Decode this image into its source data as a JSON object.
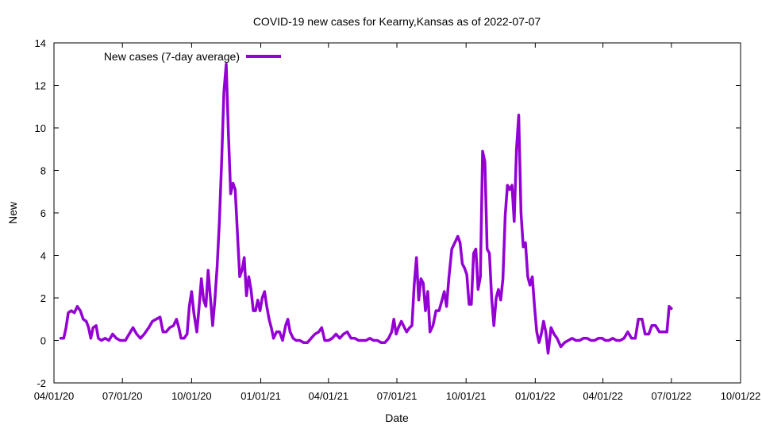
{
  "chart_data": {
    "type": "line",
    "title": "COVID-19 new cases for Kearny,Kansas as of 2022-07-07",
    "xlabel": "Date",
    "ylabel": "New",
    "xlim": [
      "2020-04-01",
      "2022-10-01"
    ],
    "ylim": [
      -2,
      14
    ],
    "x_ticks": [
      "04/01/20",
      "07/01/20",
      "10/01/20",
      "01/01/21",
      "04/01/21",
      "07/01/21",
      "10/01/21",
      "01/01/22",
      "04/01/22",
      "07/01/22",
      "10/01/22"
    ],
    "y_ticks": [
      -2,
      0,
      2,
      4,
      6,
      8,
      10,
      12,
      14
    ],
    "grid": false,
    "legend_position": "top-left",
    "series": [
      {
        "name": "New cases (7-day average)",
        "color": "#9400D3",
        "points": [
          [
            "2020-04-10",
            0.1
          ],
          [
            "2020-04-14",
            0.1
          ],
          [
            "2020-04-17",
            0.6
          ],
          [
            "2020-04-20",
            1.3
          ],
          [
            "2020-04-24",
            1.4
          ],
          [
            "2020-04-28",
            1.3
          ],
          [
            "2020-05-02",
            1.6
          ],
          [
            "2020-05-06",
            1.4
          ],
          [
            "2020-05-10",
            1.0
          ],
          [
            "2020-05-14",
            0.9
          ],
          [
            "2020-05-17",
            0.6
          ],
          [
            "2020-05-20",
            0.1
          ],
          [
            "2020-05-23",
            0.6
          ],
          [
            "2020-05-27",
            0.7
          ],
          [
            "2020-05-30",
            0.1
          ],
          [
            "2020-06-03",
            0.0
          ],
          [
            "2020-06-08",
            0.1
          ],
          [
            "2020-06-13",
            0.0
          ],
          [
            "2020-06-18",
            0.3
          ],
          [
            "2020-06-23",
            0.1
          ],
          [
            "2020-06-28",
            0.0
          ],
          [
            "2020-07-05",
            0.0
          ],
          [
            "2020-07-10",
            0.3
          ],
          [
            "2020-07-15",
            0.6
          ],
          [
            "2020-07-20",
            0.3
          ],
          [
            "2020-07-25",
            0.1
          ],
          [
            "2020-07-30",
            0.3
          ],
          [
            "2020-08-05",
            0.6
          ],
          [
            "2020-08-10",
            0.9
          ],
          [
            "2020-08-15",
            1.0
          ],
          [
            "2020-08-20",
            1.1
          ],
          [
            "2020-08-24",
            0.4
          ],
          [
            "2020-08-28",
            0.4
          ],
          [
            "2020-09-02",
            0.6
          ],
          [
            "2020-09-07",
            0.7
          ],
          [
            "2020-09-11",
            1.0
          ],
          [
            "2020-09-14",
            0.6
          ],
          [
            "2020-09-17",
            0.1
          ],
          [
            "2020-09-21",
            0.1
          ],
          [
            "2020-09-25",
            0.3
          ],
          [
            "2020-09-28",
            1.6
          ],
          [
            "2020-10-01",
            2.3
          ],
          [
            "2020-10-04",
            1.3
          ],
          [
            "2020-10-08",
            0.4
          ],
          [
            "2020-10-11",
            1.6
          ],
          [
            "2020-10-14",
            2.9
          ],
          [
            "2020-10-17",
            1.9
          ],
          [
            "2020-10-20",
            1.6
          ],
          [
            "2020-10-23",
            3.3
          ],
          [
            "2020-10-26",
            2.0
          ],
          [
            "2020-10-29",
            0.7
          ],
          [
            "2020-11-01",
            1.9
          ],
          [
            "2020-11-04",
            3.5
          ],
          [
            "2020-11-07",
            5.6
          ],
          [
            "2020-11-10",
            8.5
          ],
          [
            "2020-11-13",
            11.7
          ],
          [
            "2020-11-16",
            13.0
          ],
          [
            "2020-11-19",
            9.7
          ],
          [
            "2020-11-22",
            6.9
          ],
          [
            "2020-11-25",
            7.4
          ],
          [
            "2020-11-28",
            7.1
          ],
          [
            "2020-12-01",
            5.0
          ],
          [
            "2020-12-04",
            3.0
          ],
          [
            "2020-12-07",
            3.3
          ],
          [
            "2020-12-10",
            3.9
          ],
          [
            "2020-12-13",
            2.1
          ],
          [
            "2020-12-16",
            3.0
          ],
          [
            "2020-12-19",
            2.4
          ],
          [
            "2020-12-22",
            1.4
          ],
          [
            "2020-12-25",
            1.4
          ],
          [
            "2020-12-28",
            1.9
          ],
          [
            "2020-12-31",
            1.4
          ],
          [
            "2021-01-03",
            2.0
          ],
          [
            "2021-01-06",
            2.3
          ],
          [
            "2021-01-09",
            1.6
          ],
          [
            "2021-01-12",
            1.0
          ],
          [
            "2021-01-15",
            0.6
          ],
          [
            "2021-01-18",
            0.1
          ],
          [
            "2021-01-22",
            0.4
          ],
          [
            "2021-01-26",
            0.4
          ],
          [
            "2021-01-30",
            0.0
          ],
          [
            "2021-02-03",
            0.7
          ],
          [
            "2021-02-06",
            1.0
          ],
          [
            "2021-02-09",
            0.4
          ],
          [
            "2021-02-13",
            0.1
          ],
          [
            "2021-02-17",
            0.0
          ],
          [
            "2021-02-22",
            0.0
          ],
          [
            "2021-02-27",
            -0.1
          ],
          [
            "2021-03-04",
            -0.1
          ],
          [
            "2021-03-09",
            0.1
          ],
          [
            "2021-03-14",
            0.3
          ],
          [
            "2021-03-19",
            0.4
          ],
          [
            "2021-03-23",
            0.6
          ],
          [
            "2021-03-27",
            0.0
          ],
          [
            "2021-04-01",
            0.0
          ],
          [
            "2021-04-06",
            0.1
          ],
          [
            "2021-04-11",
            0.3
          ],
          [
            "2021-04-16",
            0.1
          ],
          [
            "2021-04-21",
            0.3
          ],
          [
            "2021-04-26",
            0.4
          ],
          [
            "2021-05-01",
            0.1
          ],
          [
            "2021-05-06",
            0.1
          ],
          [
            "2021-05-11",
            0.0
          ],
          [
            "2021-05-16",
            0.0
          ],
          [
            "2021-05-21",
            0.0
          ],
          [
            "2021-05-26",
            0.1
          ],
          [
            "2021-05-31",
            0.0
          ],
          [
            "2021-06-05",
            0.0
          ],
          [
            "2021-06-10",
            -0.1
          ],
          [
            "2021-06-15",
            -0.1
          ],
          [
            "2021-06-20",
            0.1
          ],
          [
            "2021-06-24",
            0.4
          ],
          [
            "2021-06-27",
            1.0
          ],
          [
            "2021-06-30",
            0.3
          ],
          [
            "2021-07-03",
            0.6
          ],
          [
            "2021-07-07",
            0.9
          ],
          [
            "2021-07-11",
            0.6
          ],
          [
            "2021-07-14",
            0.4
          ],
          [
            "2021-07-18",
            0.6
          ],
          [
            "2021-07-21",
            0.7
          ],
          [
            "2021-07-24",
            2.6
          ],
          [
            "2021-07-27",
            3.9
          ],
          [
            "2021-07-30",
            1.9
          ],
          [
            "2021-08-02",
            2.9
          ],
          [
            "2021-08-05",
            2.7
          ],
          [
            "2021-08-08",
            1.4
          ],
          [
            "2021-08-11",
            2.3
          ],
          [
            "2021-08-14",
            0.4
          ],
          [
            "2021-08-18",
            0.7
          ],
          [
            "2021-08-22",
            1.4
          ],
          [
            "2021-08-26",
            1.4
          ],
          [
            "2021-08-30",
            1.9
          ],
          [
            "2021-09-02",
            2.3
          ],
          [
            "2021-09-05",
            1.6
          ],
          [
            "2021-09-08",
            2.9
          ],
          [
            "2021-09-12",
            4.3
          ],
          [
            "2021-09-16",
            4.6
          ],
          [
            "2021-09-20",
            4.9
          ],
          [
            "2021-09-23",
            4.6
          ],
          [
            "2021-09-26",
            3.6
          ],
          [
            "2021-09-29",
            3.4
          ],
          [
            "2021-10-02",
            3.1
          ],
          [
            "2021-10-05",
            1.7
          ],
          [
            "2021-10-08",
            1.7
          ],
          [
            "2021-10-11",
            4.1
          ],
          [
            "2021-10-14",
            4.3
          ],
          [
            "2021-10-17",
            2.4
          ],
          [
            "2021-10-20",
            3.0
          ],
          [
            "2021-10-23",
            8.9
          ],
          [
            "2021-10-26",
            8.4
          ],
          [
            "2021-10-29",
            4.3
          ],
          [
            "2021-11-01",
            4.1
          ],
          [
            "2021-11-04",
            2.0
          ],
          [
            "2021-11-07",
            0.7
          ],
          [
            "2021-11-10",
            2.0
          ],
          [
            "2021-11-13",
            2.4
          ],
          [
            "2021-11-16",
            1.9
          ],
          [
            "2021-11-19",
            2.9
          ],
          [
            "2021-11-22",
            5.9
          ],
          [
            "2021-11-25",
            7.3
          ],
          [
            "2021-11-28",
            7.1
          ],
          [
            "2021-12-01",
            7.3
          ],
          [
            "2021-12-04",
            5.6
          ],
          [
            "2021-12-07",
            9.0
          ],
          [
            "2021-12-10",
            10.6
          ],
          [
            "2021-12-13",
            6.0
          ],
          [
            "2021-12-16",
            4.4
          ],
          [
            "2021-12-19",
            4.6
          ],
          [
            "2021-12-22",
            3.0
          ],
          [
            "2021-12-25",
            2.6
          ],
          [
            "2021-12-28",
            3.0
          ],
          [
            "2021-12-31",
            1.6
          ],
          [
            "2022-01-03",
            0.4
          ],
          [
            "2022-01-06",
            -0.1
          ],
          [
            "2022-01-09",
            0.3
          ],
          [
            "2022-01-12",
            0.9
          ],
          [
            "2022-01-15",
            0.4
          ],
          [
            "2022-01-18",
            -0.6
          ],
          [
            "2022-01-22",
            0.6
          ],
          [
            "2022-01-26",
            0.3
          ],
          [
            "2022-01-30",
            0.1
          ],
          [
            "2022-02-04",
            -0.3
          ],
          [
            "2022-02-09",
            -0.1
          ],
          [
            "2022-02-14",
            0.0
          ],
          [
            "2022-02-19",
            0.1
          ],
          [
            "2022-02-24",
            0.0
          ],
          [
            "2022-03-01",
            0.0
          ],
          [
            "2022-03-06",
            0.1
          ],
          [
            "2022-03-11",
            0.1
          ],
          [
            "2022-03-16",
            0.0
          ],
          [
            "2022-03-21",
            0.0
          ],
          [
            "2022-03-26",
            0.1
          ],
          [
            "2022-03-31",
            0.1
          ],
          [
            "2022-04-04",
            0.0
          ],
          [
            "2022-04-09",
            0.0
          ],
          [
            "2022-04-14",
            0.1
          ],
          [
            "2022-04-19",
            0.0
          ],
          [
            "2022-04-24",
            0.0
          ],
          [
            "2022-04-29",
            0.1
          ],
          [
            "2022-05-04",
            0.4
          ],
          [
            "2022-05-09",
            0.1
          ],
          [
            "2022-05-14",
            0.1
          ],
          [
            "2022-05-18",
            1.0
          ],
          [
            "2022-05-23",
            1.0
          ],
          [
            "2022-05-27",
            0.3
          ],
          [
            "2022-06-01",
            0.3
          ],
          [
            "2022-06-05",
            0.7
          ],
          [
            "2022-06-10",
            0.7
          ],
          [
            "2022-06-15",
            0.4
          ],
          [
            "2022-06-20",
            0.4
          ],
          [
            "2022-06-25",
            0.4
          ],
          [
            "2022-06-28",
            1.6
          ],
          [
            "2022-07-01",
            1.5
          ]
        ]
      }
    ]
  }
}
